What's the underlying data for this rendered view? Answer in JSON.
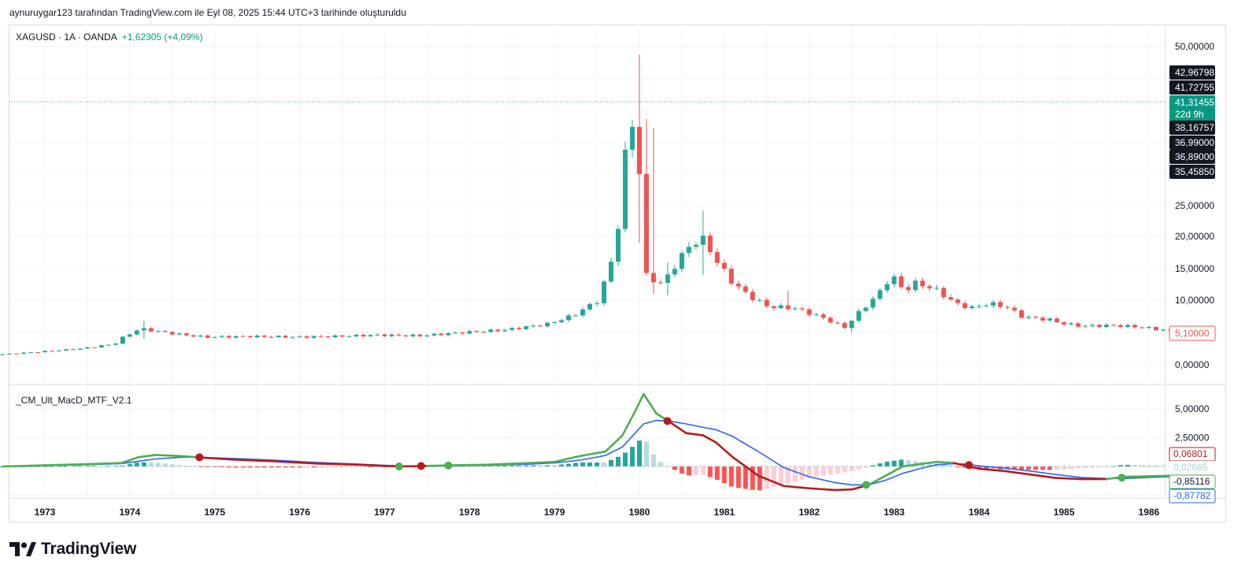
{
  "caption": "aynuruygar123 tarafından TradingView.com ile Eyl 08, 2025 15:44 UTC+3 tarihinde oluşturuldu",
  "legend": {
    "symbol": "XAGUSD · 1A · OANDA",
    "change": "+1,62305 (+4,09%)"
  },
  "indicator_legend": "_CM_Ult_MacD_MTF_V2.1",
  "brand": {
    "name": "TradingView",
    "logo_icon": "tradingview-logo-icon"
  },
  "colors": {
    "up": "#26a69a",
    "down": "#ef5350",
    "macd_up": "#4caf50",
    "macd_down": "#b71c1c",
    "signal": "#2962ff",
    "hist_up_strong": "#26a69a",
    "hist_up_weak": "#b2dfdb",
    "hist_down_strong": "#ff5252",
    "hist_down_weak": "#ffcdd2"
  },
  "chart_data": [
    {
      "type": "candlestick",
      "title": "XAGUSD · 1A · OANDA",
      "ylim": [
        0,
        55
      ],
      "price_ticks": [
        "50,00000",
        "25,00000",
        "20,00000",
        "15,00000",
        "10,00000",
        "0,00000"
      ],
      "price_tick_values": [
        50,
        25,
        20,
        15,
        10,
        0
      ],
      "x_ticks": [
        "1973",
        "1974",
        "1975",
        "1976",
        "1977",
        "1978",
        "1979",
        "1980",
        "1981",
        "1982",
        "1983",
        "1984",
        "1985",
        "1986"
      ],
      "x_range": [
        1972.5,
        1986.33
      ],
      "last_price_line": 41.31455,
      "price_labels": [
        {
          "text": "42,96798",
          "value": 42.96798,
          "style": "dark"
        },
        {
          "text": "41,72755",
          "value": 41.72755,
          "style": "dark"
        },
        {
          "text": "41,31455",
          "value": 41.31455,
          "style": "green"
        },
        {
          "text": "22d 9h",
          "value": 40.0,
          "style": "green"
        },
        {
          "text": "38,16757",
          "value": 38.16757,
          "style": "dark"
        },
        {
          "text": "36,99000",
          "value": 36.99,
          "style": "dark"
        },
        {
          "text": "36,89000",
          "value": 36.89,
          "style": "dark"
        },
        {
          "text": "35,45850",
          "value": 35.4585,
          "style": "dark"
        },
        {
          "text": "5,10000",
          "value": 5.1,
          "style": "red"
        }
      ],
      "anchors": [
        [
          1972.5,
          1.55
        ],
        [
          1973.0,
          2.0
        ],
        [
          1973.5,
          2.5
        ],
        [
          1973.9,
          3.2
        ],
        [
          1974.0,
          4.2
        ],
        [
          1974.2,
          5.6
        ],
        [
          1974.5,
          5.0
        ],
        [
          1974.8,
          4.5
        ],
        [
          1975.0,
          4.3
        ],
        [
          1975.5,
          4.4
        ],
        [
          1976.0,
          4.3
        ],
        [
          1976.5,
          4.4
        ],
        [
          1977.0,
          4.6
        ],
        [
          1977.5,
          4.5
        ],
        [
          1978.0,
          5.0
        ],
        [
          1978.5,
          5.4
        ],
        [
          1979.0,
          6.3
        ],
        [
          1979.3,
          7.6
        ],
        [
          1979.6,
          10.0
        ],
        [
          1979.75,
          16.0
        ],
        [
          1979.85,
          23.0
        ],
        [
          1979.95,
          37.5
        ],
        [
          1980.05,
          38.5
        ],
        [
          1980.15,
          14.0
        ],
        [
          1980.35,
          12.5
        ],
        [
          1980.5,
          15.5
        ],
        [
          1980.7,
          19.0
        ],
        [
          1980.85,
          19.5
        ],
        [
          1981.0,
          16.0
        ],
        [
          1981.2,
          12.5
        ],
        [
          1981.4,
          10.5
        ],
        [
          1981.6,
          9.0
        ],
        [
          1981.9,
          8.8
        ],
        [
          1982.2,
          7.5
        ],
        [
          1982.5,
          5.8
        ],
        [
          1982.7,
          8.5
        ],
        [
          1982.9,
          11.0
        ],
        [
          1983.05,
          14.0
        ],
        [
          1983.2,
          11.5
        ],
        [
          1983.35,
          12.8
        ],
        [
          1983.6,
          11.5
        ],
        [
          1983.8,
          9.5
        ],
        [
          1984.0,
          8.8
        ],
        [
          1984.2,
          9.5
        ],
        [
          1984.4,
          9.0
        ],
        [
          1984.6,
          7.4
        ],
        [
          1984.9,
          7.0
        ],
        [
          1985.1,
          6.3
        ],
        [
          1985.3,
          6.0
        ],
        [
          1985.7,
          6.1
        ],
        [
          1986.0,
          5.8
        ],
        [
          1986.3,
          5.3
        ]
      ]
    },
    {
      "type": "line",
      "title": "_CM_Ult_MacD_MTF_V2.1",
      "ylim": [
        -2.0,
        7.0
      ],
      "price_ticks": [
        "5,00000",
        "2,50000"
      ],
      "price_tick_values": [
        5.0,
        2.5
      ],
      "value_labels": [
        {
          "text": "0,06801",
          "value": 1.0,
          "style": "red-outline"
        },
        {
          "text": "0,02665",
          "value": 0.02665,
          "style": "faint"
        },
        {
          "text": "-0,85116",
          "value": -1.0,
          "style": "green-outline"
        },
        {
          "text": "-0,87782",
          "value": -2.35,
          "style": "blue-outline"
        }
      ],
      "macd": [
        [
          1972.5,
          0.0
        ],
        [
          1973.0,
          0.1
        ],
        [
          1973.5,
          0.2
        ],
        [
          1973.9,
          0.3
        ],
        [
          1974.1,
          0.8
        ],
        [
          1974.3,
          1.0
        ],
        [
          1974.6,
          0.9
        ],
        [
          1974.8,
          0.8
        ],
        [
          1975.2,
          0.6
        ],
        [
          1975.7,
          0.45
        ],
        [
          1976.2,
          0.25
        ],
        [
          1976.7,
          0.15
        ],
        [
          1977.0,
          0.05
        ],
        [
          1977.2,
          0.0
        ],
        [
          1977.5,
          0.05
        ],
        [
          1977.8,
          0.1
        ],
        [
          1978.2,
          0.15
        ],
        [
          1978.7,
          0.3
        ],
        [
          1979.0,
          0.4
        ],
        [
          1979.3,
          0.9
        ],
        [
          1979.6,
          1.3
        ],
        [
          1979.8,
          2.7
        ],
        [
          1979.95,
          4.8
        ],
        [
          1980.05,
          6.3
        ],
        [
          1980.2,
          4.6
        ],
        [
          1980.35,
          3.9
        ],
        [
          1980.55,
          2.9
        ],
        [
          1980.75,
          2.7
        ],
        [
          1980.9,
          2.1
        ],
        [
          1981.1,
          0.8
        ],
        [
          1981.4,
          -0.8
        ],
        [
          1981.7,
          -1.7
        ],
        [
          1982.0,
          -1.9
        ],
        [
          1982.3,
          -2.05
        ],
        [
          1982.5,
          -2.0
        ],
        [
          1982.7,
          -1.6
        ],
        [
          1982.9,
          -0.8
        ],
        [
          1983.1,
          0.0
        ],
        [
          1983.3,
          0.2
        ],
        [
          1983.5,
          0.4
        ],
        [
          1983.7,
          0.3
        ],
        [
          1983.85,
          0.05
        ],
        [
          1984.0,
          -0.2
        ],
        [
          1984.3,
          -0.4
        ],
        [
          1984.6,
          -0.7
        ],
        [
          1984.9,
          -1.0
        ],
        [
          1985.2,
          -1.1
        ],
        [
          1985.5,
          -1.1
        ],
        [
          1985.7,
          -0.9
        ],
        [
          1986.0,
          -0.85
        ],
        [
          1986.3,
          -0.8
        ]
      ],
      "signal": [
        [
          1972.5,
          0.0
        ],
        [
          1973.0,
          0.08
        ],
        [
          1973.5,
          0.15
        ],
        [
          1973.9,
          0.25
        ],
        [
          1974.1,
          0.45
        ],
        [
          1974.3,
          0.65
        ],
        [
          1974.6,
          0.8
        ],
        [
          1974.8,
          0.8
        ],
        [
          1975.2,
          0.7
        ],
        [
          1975.7,
          0.55
        ],
        [
          1976.2,
          0.35
        ],
        [
          1976.7,
          0.2
        ],
        [
          1977.0,
          0.1
        ],
        [
          1977.2,
          0.04
        ],
        [
          1977.5,
          0.03
        ],
        [
          1977.8,
          0.05
        ],
        [
          1978.2,
          0.1
        ],
        [
          1978.7,
          0.2
        ],
        [
          1979.0,
          0.3
        ],
        [
          1979.3,
          0.55
        ],
        [
          1979.6,
          0.95
        ],
        [
          1979.8,
          1.7
        ],
        [
          1979.95,
          2.9
        ],
        [
          1980.05,
          3.7
        ],
        [
          1980.2,
          4.0
        ],
        [
          1980.35,
          3.95
        ],
        [
          1980.55,
          3.7
        ],
        [
          1980.75,
          3.4
        ],
        [
          1980.9,
          3.2
        ],
        [
          1981.1,
          2.6
        ],
        [
          1981.4,
          1.3
        ],
        [
          1981.7,
          -0.1
        ],
        [
          1982.0,
          -0.9
        ],
        [
          1982.3,
          -1.4
        ],
        [
          1982.5,
          -1.6
        ],
        [
          1982.7,
          -1.6
        ],
        [
          1982.9,
          -1.2
        ],
        [
          1983.1,
          -0.6
        ],
        [
          1983.3,
          -0.2
        ],
        [
          1983.5,
          0.15
        ],
        [
          1983.7,
          0.25
        ],
        [
          1983.85,
          0.2
        ],
        [
          1984.0,
          0.05
        ],
        [
          1984.3,
          -0.15
        ],
        [
          1984.6,
          -0.4
        ],
        [
          1984.9,
          -0.7
        ],
        [
          1985.2,
          -0.95
        ],
        [
          1985.5,
          -1.05
        ],
        [
          1985.7,
          -1.05
        ],
        [
          1986.0,
          -0.95
        ],
        [
          1986.3,
          -0.88
        ]
      ],
      "cross_markers": [
        [
          1974.82,
          0.8,
          "down"
        ],
        [
          1977.17,
          0.0,
          "up"
        ],
        [
          1977.43,
          0.04,
          "down"
        ],
        [
          1977.75,
          0.08,
          "up"
        ],
        [
          1980.33,
          3.95,
          "down"
        ],
        [
          1982.67,
          -1.6,
          "up"
        ],
        [
          1983.88,
          0.12,
          "down"
        ],
        [
          1985.68,
          -0.98,
          "up"
        ]
      ]
    }
  ]
}
